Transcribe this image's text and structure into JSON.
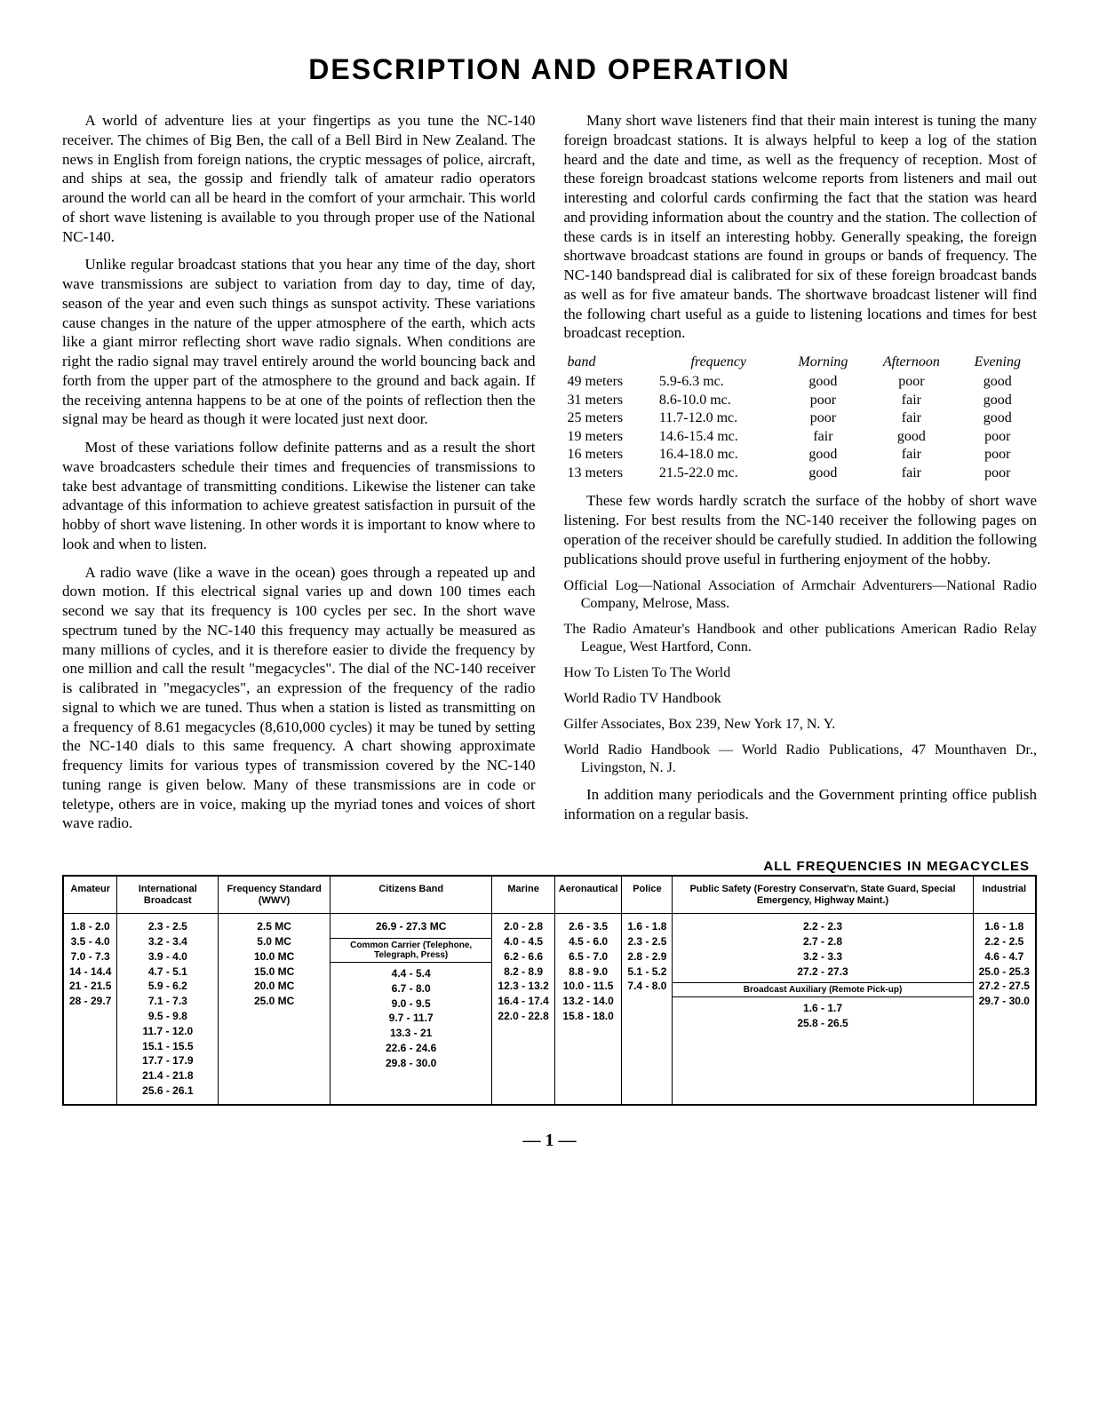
{
  "title": "DESCRIPTION AND OPERATION",
  "paragraphs": {
    "p1": "A world of adventure lies at your fingertips as you tune the NC-140 receiver. The chimes of Big Ben, the call of a Bell Bird in New Zealand. The news in English from foreign nations, the cryptic messages of police, aircraft, and ships at sea, the gossip and friendly talk of amateur radio operators around the world can all be heard in the comfort of your armchair. This world of short wave listening is available to you through proper use of the National NC-140.",
    "p2": "Unlike regular broadcast stations that you hear any time of the day, short wave transmissions are subject to variation from day to day, time of day, season of the year and even such things as sunspot activity. These variations cause changes in the nature of the upper atmosphere of the earth, which acts like a giant mirror reflecting short wave radio signals. When conditions are right the radio signal may travel entirely around the world bouncing back and forth from the upper part of the atmosphere to the ground and back again. If the receiving antenna happens to be at one of the points of reflection then the signal may be heard as though it were located just next door.",
    "p3": "Most of these variations follow definite patterns and as a result the short wave broadcasters schedule their times and frequencies of transmissions to take best advantage of transmitting conditions. Likewise the listener can take advantage of this information to achieve greatest satisfaction in pursuit of the hobby of short wave listening. In other words it is important to know where to look and when to listen.",
    "p4": "A radio wave (like a wave in the ocean) goes through a repeated up and down motion. If this electrical signal varies up and down 100 times each second we say that its frequency is 100 cycles per sec. In the short wave spectrum tuned by the NC-140 this frequency may actually be measured as many millions of cycles, and it is therefore easier to divide the frequency by one million and call the result \"megacycles\". The dial of the NC-140 receiver is calibrated in \"megacycles\", an expression of the frequency of the radio signal to which we are tuned. Thus when a station is listed as transmitting on a frequency of 8.61 megacycles (8,610,000 cycles) it may be tuned by setting the NC-140 dials to this same frequency. A chart showing approximate frequency limits for various types of transmission covered by the NC-140 tuning range is given below. Many of these transmissions are in code or teletype, others are in voice, making up the myriad tones and voices of short wave radio.",
    "p5": "Many short wave listeners find that their main interest is tuning the many foreign broadcast stations. It is always helpful to keep a log of the station heard and the date and time, as well as the frequency of reception. Most of these foreign broadcast stations welcome reports from listeners and mail out interesting and colorful cards confirming the fact that the station was heard and providing information about the country and the station. The collection of these cards is in itself an interesting hobby. Generally speaking, the foreign shortwave broadcast stations are found in groups or bands of frequency. The NC-140 bandspread dial is calibrated for six of these foreign broadcast bands as well as for five amateur bands. The shortwave broadcast listener will find the following chart useful as a guide to listening locations and times for best broadcast reception.",
    "p6": "These few words hardly scratch the surface of the hobby of short wave listening. For best results from the NC-140 receiver the following pages on operation of the receiver should be carefully studied. In addition the following publications should prove useful in furthering enjoyment of the hobby.",
    "p7": "In addition many periodicals and the Government printing office publish information on a regular basis."
  },
  "band_table": {
    "headers": [
      "band",
      "frequency",
      "Morning",
      "Afternoon",
      "Evening"
    ],
    "rows": [
      [
        "49 meters",
        "5.9-6.3 mc.",
        "good",
        "poor",
        "good"
      ],
      [
        "31 meters",
        "8.6-10.0 mc.",
        "poor",
        "fair",
        "good"
      ],
      [
        "25 meters",
        "11.7-12.0 mc.",
        "poor",
        "fair",
        "good"
      ],
      [
        "19 meters",
        "14.6-15.4 mc.",
        "fair",
        "good",
        "poor"
      ],
      [
        "16 meters",
        "16.4-18.0 mc.",
        "good",
        "fair",
        "poor"
      ],
      [
        "13 meters",
        "21.5-22.0 mc.",
        "good",
        "fair",
        "poor"
      ]
    ]
  },
  "publications": {
    "pub1": "Official Log—National Association of Armchair Adventurers—National Radio Company, Melrose, Mass.",
    "pub2": "The Radio Amateur's Handbook and other publications American Radio Relay League, West Hartford, Conn.",
    "pub3": "How To Listen To The World",
    "pub4a": "World Radio TV Handbook",
    "pub4b": "Gilfer Associates, Box 239, New York 17, N. Y.",
    "pub5": "World Radio Handbook — World Radio Publications, 47 Mounthaven Dr., Livingston, N. J."
  },
  "freq_table": {
    "title": "ALL FREQUENCIES IN MEGACYCLES",
    "headers": [
      "Amateur",
      "International Broadcast",
      "Frequency Standard (WWV)",
      "Citizens Band",
      "Marine",
      "Aeronautical",
      "Police",
      "Public Safety (Forestry Conservat'n, State Guard, Special Emergency, Highway Maint.)",
      "Industrial"
    ],
    "sub1_label": "Common Carrier (Telephone, Telegraph, Press)",
    "sub2_label": "Broadcast Auxiliary (Remote Pick-up)",
    "cols": {
      "amateur": "1.8 - 2.0\n3.5 - 4.0\n7.0 - 7.3\n14 - 14.4\n21 - 21.5\n28 - 29.7",
      "intl": "2.3 - 2.5\n3.2 - 3.4\n3.9 - 4.0\n4.7 - 5.1\n5.9 - 6.2\n7.1 - 7.3\n9.5 - 9.8\n11.7 - 12.0\n15.1 - 15.5\n17.7 - 17.9\n21.4 - 21.8\n25.6 - 26.1",
      "wwv": "2.5 MC\n5.0 MC\n10.0 MC\n15.0 MC\n20.0 MC\n25.0 MC",
      "citizens": "26.9 - 27.3 MC",
      "carrier": "4.4 - 5.4\n6.7 - 8.0\n9.0 - 9.5\n9.7 - 11.7\n13.3 - 21\n22.6 - 24.6\n29.8 - 30.0",
      "marine": "2.0 - 2.8\n4.0 - 4.5\n6.2 - 6.6\n8.2 - 8.9\n12.3 - 13.2\n16.4 - 17.4\n22.0 - 22.8",
      "aero": "2.6 - 3.5\n4.5 - 6.0\n6.5 - 7.0\n8.8 - 9.0\n10.0 - 11.5\n13.2 - 14.0\n15.8 - 18.0",
      "police": "1.6 - 1.8\n2.3 - 2.5\n2.8 - 2.9\n5.1 - 5.2\n7.4 - 8.0",
      "safety": "2.2 - 2.3\n2.7 - 2.8\n3.2 - 3.3\n27.2 - 27.3",
      "safety2": "1.6 - 1.7\n25.8 - 26.5",
      "industrial": "1.6 - 1.8\n2.2 - 2.5\n4.6 - 4.7\n25.0 - 25.3\n27.2 - 27.5\n29.7 - 30.0"
    }
  },
  "page_number": "— 1 —"
}
